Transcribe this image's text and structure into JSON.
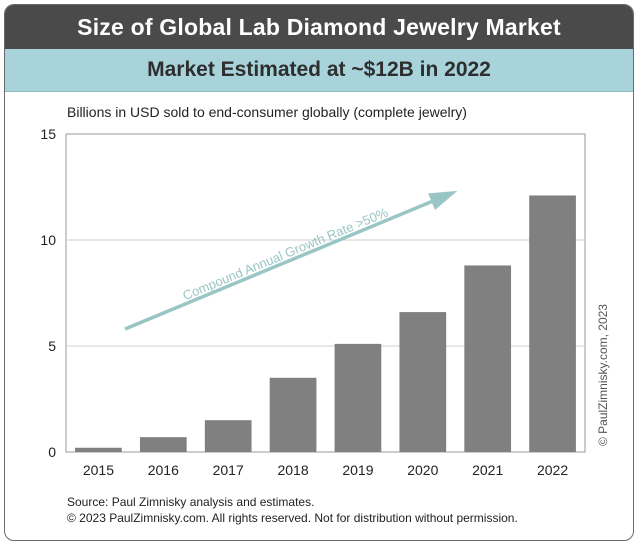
{
  "header": {
    "title": "Size of Global Lab Diamond Jewelry Market",
    "subtitle": "Market Estimated at ~$12B in 2022"
  },
  "chart_data": {
    "type": "bar",
    "title": "Size of Global Lab Diamond Jewelry Market",
    "subtitle": "Market Estimated at ~$12B in 2022",
    "ylabel": "Billions in USD sold to end-consumer globally (complete jewelry)",
    "xlabel": "",
    "categories": [
      "2015",
      "2016",
      "2017",
      "2018",
      "2019",
      "2020",
      "2021",
      "2022"
    ],
    "values": [
      0.2,
      0.7,
      1.5,
      3.5,
      5.1,
      6.6,
      8.8,
      12.1
    ],
    "ylim": [
      0,
      15
    ],
    "yticks": [
      0,
      5,
      10,
      15
    ],
    "grid": true,
    "bar_color": "#808080",
    "annotation": {
      "text": "Compound Annual Growth Rate >50%",
      "arrow_color": "#99c6c4"
    },
    "copyright_vertical": "© PaulZimnisky.com, 2023"
  },
  "footer": {
    "source": "Source: Paul Zimnisky analysis and estimates.",
    "rights": "© 2023 PaulZimnisky.com. All rights reserved. Not for distribution without permission."
  },
  "colors": {
    "header_bg": "#4a4a4a",
    "subheader_bg": "#a9d3db",
    "bar": "#808080",
    "arrow": "#99c6c4"
  }
}
